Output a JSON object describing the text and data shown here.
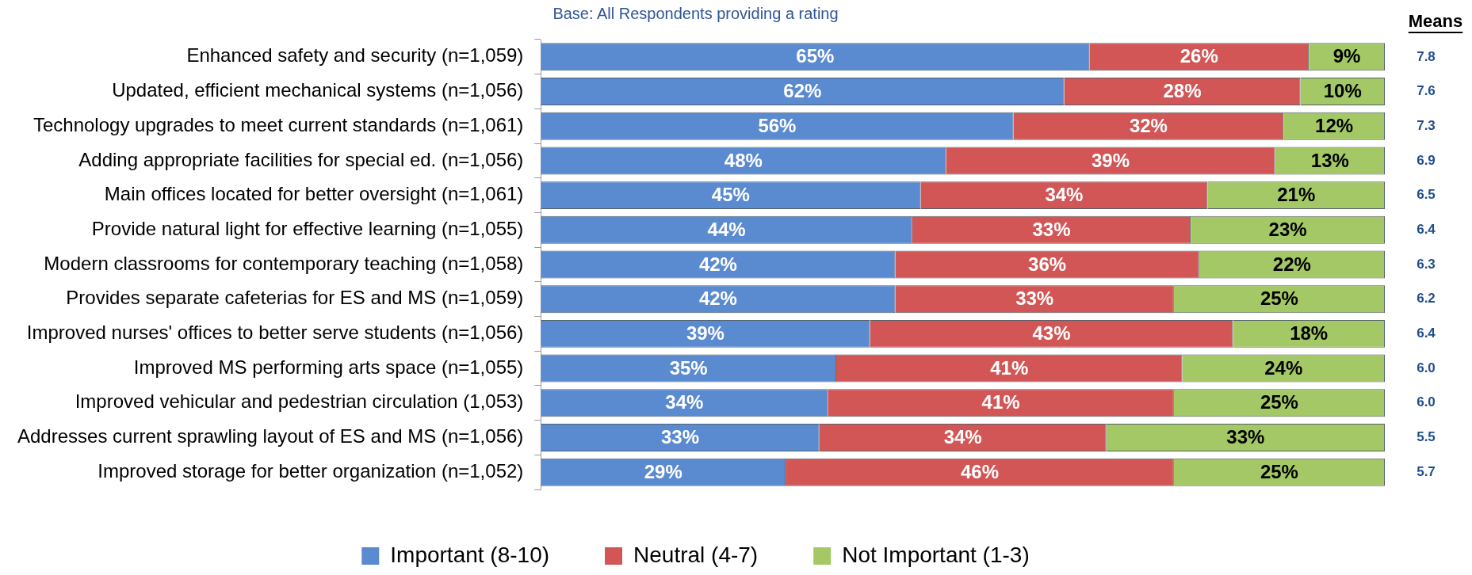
{
  "chart_data": {
    "type": "bar",
    "orientation": "horizontal",
    "stacked": true,
    "subtitle": "Base: All Respondents providing a rating",
    "categories": [
      "Enhanced safety and security (n=1,059)",
      "Updated, efficient mechanical systems (n=1,056)",
      "Technology upgrades to meet current standards (n=1,061)",
      "Adding appropriate facilities for special ed. (n=1,056)",
      "Main offices located for better oversight (n=1,061)",
      "Provide natural light for effective learning (n=1,055)",
      "Modern classrooms for contemporary teaching (n=1,058)",
      "Provides separate cafeterias for ES and MS (n=1,059)",
      "Improved nurses' offices to better serve students (n=1,056)",
      "Improved MS performing arts space (n=1,055)",
      "Improved vehicular and pedestrian circulation (1,053)",
      "Addresses current sprawling layout of ES and MS (n=1,056)",
      "Improved storage for better organization (n=1,052)"
    ],
    "series": [
      {
        "name": "Important (8-10)",
        "color": "#5a8ad0",
        "values": [
          65,
          62,
          56,
          48,
          45,
          44,
          42,
          42,
          39,
          35,
          34,
          33,
          29
        ],
        "value_labels": [
          "65%",
          "62%",
          "56%",
          "48%",
          "45%",
          "44%",
          "42%",
          "42%",
          "39%",
          "35%",
          "34%",
          "33%",
          "29%"
        ]
      },
      {
        "name": "Neutral (4-7)",
        "color": "#d25656",
        "values": [
          26,
          28,
          32,
          39,
          34,
          33,
          36,
          33,
          43,
          41,
          41,
          34,
          46
        ],
        "value_labels": [
          "26%",
          "28%",
          "32%",
          "39%",
          "34%",
          "33%",
          "36%",
          "33%",
          "43%",
          "41%",
          "41%",
          "34%",
          "46%"
        ]
      },
      {
        "name": "Not Important (1-3)",
        "color": "#a3c865",
        "values": [
          9,
          10,
          12,
          13,
          21,
          23,
          22,
          25,
          18,
          24,
          25,
          33,
          25
        ],
        "value_labels": [
          "9%",
          "10%",
          "12%",
          "13%",
          "21%",
          "23%",
          "22%",
          "25%",
          "18%",
          "24%",
          "25%",
          "33%",
          "25%"
        ]
      }
    ],
    "xlim": [
      0,
      100
    ],
    "tick_labels": "y",
    "grid": false,
    "legend": "bottom",
    "annotations": [
      "Means",
      "7.8",
      "7.6",
      "7.3",
      "6.9",
      "6.5",
      "6.4",
      "6.3",
      "6.2",
      "6.4",
      "6.0",
      "6.0",
      "5.5",
      "5.7"
    ]
  }
}
